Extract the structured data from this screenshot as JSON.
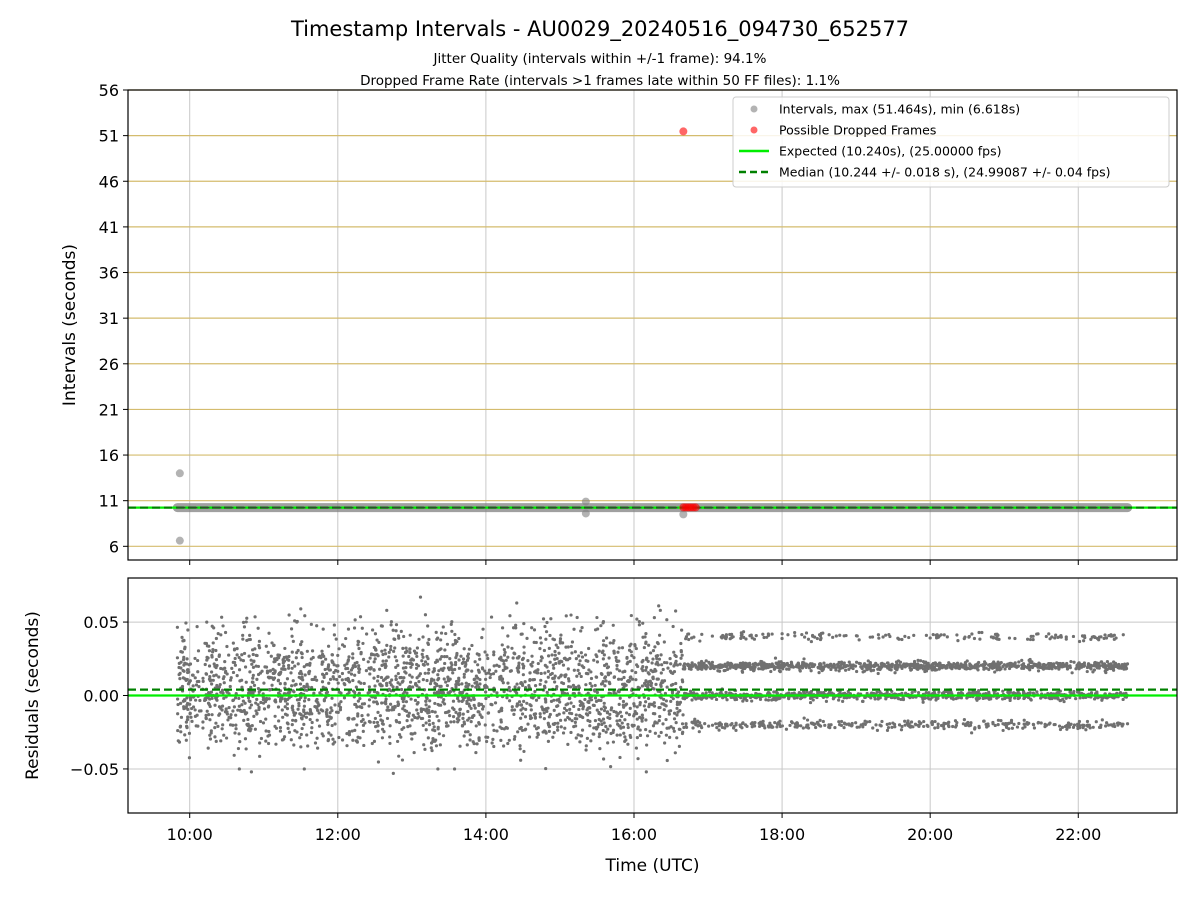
{
  "figure": {
    "title": "Timestamp Intervals - AU0029_20240516_094730_652577",
    "subtitle_jitter": "Jitter Quality (intervals within +/-1 frame): 94.1%",
    "subtitle_dropped": "Dropped Frame Rate (intervals >1 frames late within 50 FF files): 1.1%"
  },
  "colors": {
    "intervals": "#808080",
    "dropped": "#ff0000",
    "expected": "#00ee00",
    "median": "#008000",
    "hgrid_top": "#d4bc6e",
    "grid": "#c8c8c8",
    "residuals": "#707070"
  },
  "chart_data": [
    {
      "type": "scatter",
      "title": "Timestamp Intervals - AU0029_20240516_094730_652577",
      "xlabel": "",
      "ylabel": "Intervals (seconds)",
      "ylim": [
        4.5,
        56
      ],
      "y_ticks": [
        "6",
        "11",
        "16",
        "21",
        "26",
        "31",
        "36",
        "41",
        "46",
        "51",
        "56"
      ],
      "y_tick_values": [
        6,
        11,
        16,
        21,
        26,
        31,
        36,
        41,
        46,
        51,
        56
      ],
      "xlim": [
        "09:10",
        "23:20"
      ],
      "grid": true,
      "legend_position": "top-right",
      "legend": [
        {
          "label": "Intervals, max (51.464s), min (6.618s)",
          "kind": "marker",
          "color": "#808080"
        },
        {
          "label": "Possible Dropped Frames",
          "kind": "marker",
          "color": "#ff0000"
        },
        {
          "label": "Expected (10.240s), (25.00000 fps)",
          "kind": "line",
          "color": "#00ee00"
        },
        {
          "label": "Median (10.244 +/- 0.018 s), (24.99087 +/- 0.04 fps)",
          "kind": "dashed",
          "color": "#008000"
        }
      ],
      "series": [
        {
          "name": "Intervals, max (51.464s), min (6.618s)",
          "band": {
            "x_start": "09:50",
            "x_end": "22:40",
            "y": 10.24
          },
          "outliers": [
            {
              "x": "09:52",
              "y": 14.0
            },
            {
              "x": "09:52",
              "y": 6.618
            },
            {
              "x": "15:21",
              "y": 10.9
            },
            {
              "x": "15:21",
              "y": 9.6
            },
            {
              "x": "16:40",
              "y": 9.5
            }
          ]
        },
        {
          "name": "Possible Dropped Frames",
          "points": [
            {
              "x": "16:40",
              "y": 51.464
            },
            {
              "x": "16:40",
              "y": 10.26
            },
            {
              "x": "16:42",
              "y": 10.26
            },
            {
              "x": "16:44",
              "y": 10.26
            },
            {
              "x": "16:46",
              "y": 10.26
            },
            {
              "x": "16:48",
              "y": 10.26
            },
            {
              "x": "16:50",
              "y": 10.26
            }
          ]
        }
      ],
      "reference_lines": [
        {
          "name": "Expected (10.240s), (25.00000 fps)",
          "y": 10.24,
          "style": "solid"
        },
        {
          "name": "Median (10.244 +/- 0.018 s), (24.99087 +/- 0.04 fps)",
          "y": 10.244,
          "style": "dashed"
        }
      ]
    },
    {
      "type": "scatter",
      "xlabel": "Time (UTC)",
      "ylabel": "Residuals (seconds)",
      "ylim": [
        -0.08,
        0.08
      ],
      "y_ticks": [
        "−0.05",
        "0.00",
        "0.05"
      ],
      "y_tick_values": [
        -0.05,
        0.0,
        0.05
      ],
      "xlim": [
        "09:10",
        "23:20"
      ],
      "x_ticks": [
        "10:00",
        "12:00",
        "14:00",
        "16:00",
        "18:00",
        "20:00",
        "22:00"
      ],
      "grid": true,
      "reference_lines": [
        {
          "y": 0.0,
          "style": "solid"
        },
        {
          "y": 0.004,
          "style": "dashed"
        }
      ],
      "residual_pattern": {
        "period_1": {
          "x_start": "09:50",
          "x_end": "16:40",
          "spread": "scattered between -0.05 and 0.065",
          "approx_points": 2400
        },
        "period_2": {
          "x_start": "16:40",
          "x_end": "22:40",
          "levels": [
            -0.02,
            0.0,
            0.02,
            0.04
          ],
          "approx_points": 2100
        }
      },
      "outliers": [
        {
          "x": "10:50",
          "y": -0.052
        },
        {
          "x": "11:30",
          "y": 0.059
        },
        {
          "x": "13:07",
          "y": 0.067
        },
        {
          "x": "14:25",
          "y": 0.063
        },
        {
          "x": "12:45",
          "y": -0.053
        },
        {
          "x": "16:10",
          "y": -0.052
        },
        {
          "x": "16:20",
          "y": 0.061
        }
      ]
    }
  ]
}
